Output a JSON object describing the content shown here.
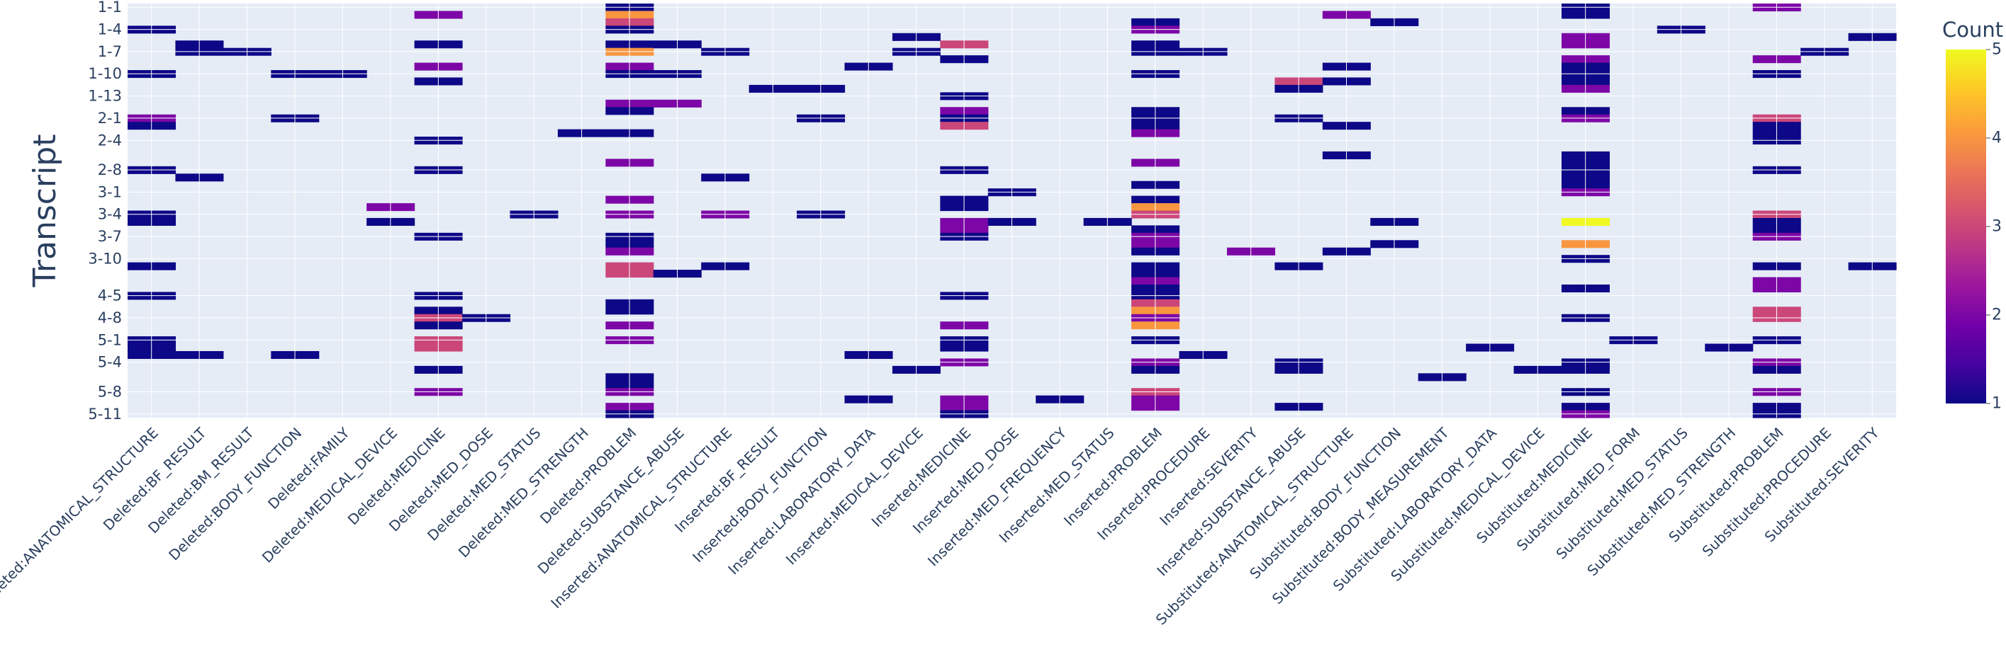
{
  "chart_data": {
    "type": "heatmap",
    "title": "",
    "xlabel": "",
    "ylabel": "Transcript",
    "colorbar_title": "Count",
    "zmin": 1,
    "zmax": 5,
    "colorbar_ticks": [
      1,
      2,
      3,
      4,
      5
    ],
    "y_tick_labels": [
      "1-1",
      "1-4",
      "1-7",
      "1-10",
      "1-13",
      "2-1",
      "2-4",
      "2-8",
      "3-1",
      "3-4",
      "3-7",
      "3-10",
      "4-5",
      "4-8",
      "5-1",
      "5-4",
      "5-8",
      "5-11"
    ],
    "y_categories": [
      "1-1",
      "1-2",
      "1-3",
      "1-4",
      "1-5",
      "1-6",
      "1-7",
      "1-8",
      "1-9",
      "1-10",
      "1-11",
      "1-12",
      "1-13",
      "1-14",
      "1-15",
      "2-1",
      "2-2",
      "2-3",
      "2-4",
      "2-5",
      "2-6",
      "2-7",
      "2-8",
      "2-9",
      "2-10",
      "3-1",
      "3-2",
      "3-3",
      "3-4",
      "3-5",
      "3-6",
      "3-7",
      "3-8",
      "3-9",
      "3-10",
      "4-1",
      "4-2",
      "4-3",
      "4-4",
      "4-5",
      "4-6",
      "4-7",
      "4-8",
      "4-9",
      "4-10",
      "5-1",
      "5-2",
      "5-3",
      "5-4",
      "5-5",
      "5-6",
      "5-7",
      "5-8",
      "5-9",
      "5-10",
      "5-11"
    ],
    "x_categories": [
      "Deleted:ANATOMICAL_STRUCTURE",
      "Deleted:BF_RESULT",
      "Deleted:BM_RESULT",
      "Deleted:BODY_FUNCTION",
      "Deleted:FAMILY",
      "Deleted:MEDICAL_DEVICE",
      "Deleted:MEDICINE",
      "Deleted:MED_DOSE",
      "Deleted:MED_STATUS",
      "Deleted:MED_STRENGTH",
      "Deleted:PROBLEM",
      "Deleted:SUBSTANCE_ABUSE",
      "Inserted:ANATOMICAL_STRUCTURE",
      "Inserted:BF_RESULT",
      "Inserted:BODY_FUNCTION",
      "Inserted:LABORATORY_DATA",
      "Inserted:MEDICAL_DEVICE",
      "Inserted:MEDICINE",
      "Inserted:MED_DOSE",
      "Inserted:MED_FREQUENCY",
      "Inserted:MED_STATUS",
      "Inserted:PROBLEM",
      "Inserted:PROCEDURE",
      "Inserted:SEVERITY",
      "Inserted:SUBSTANCE_ABUSE",
      "Substituted:ANATOMICAL_STRUCTURE",
      "Substituted:BODY_FUNCTION",
      "Substituted:BODY_MEASUREMENT",
      "Substituted:LABORATORY_DATA",
      "Substituted:MEDICAL_DEVICE",
      "Substituted:MEDICINE",
      "Substituted:MED_FORM",
      "Substituted:MED_STATUS",
      "Substituted:MED_STRENGTH",
      "Substituted:PROBLEM",
      "Substituted:PROCEDURE",
      "Substituted:SEVERITY"
    ],
    "cells": [
      [
        "1-4",
        "Deleted:ANATOMICAL_STRUCTURE",
        1
      ],
      [
        "1-10",
        "Deleted:ANATOMICAL_STRUCTURE",
        1
      ],
      [
        "2-1",
        "Deleted:ANATOMICAL_STRUCTURE",
        2
      ],
      [
        "2-2",
        "Deleted:ANATOMICAL_STRUCTURE",
        1
      ],
      [
        "2-8",
        "Deleted:ANATOMICAL_STRUCTURE",
        1
      ],
      [
        "3-4",
        "Deleted:ANATOMICAL_STRUCTURE",
        1
      ],
      [
        "3-5",
        "Deleted:ANATOMICAL_STRUCTURE",
        1
      ],
      [
        "4-1",
        "Deleted:ANATOMICAL_STRUCTURE",
        1
      ],
      [
        "4-5",
        "Deleted:ANATOMICAL_STRUCTURE",
        1
      ],
      [
        "5-1",
        "Deleted:ANATOMICAL_STRUCTURE",
        1
      ],
      [
        "5-2",
        "Deleted:ANATOMICAL_STRUCTURE",
        1
      ],
      [
        "5-3",
        "Deleted:ANATOMICAL_STRUCTURE",
        1
      ],
      [
        "1-6",
        "Deleted:BF_RESULT",
        1
      ],
      [
        "1-7",
        "Deleted:BF_RESULT",
        1
      ],
      [
        "2-9",
        "Deleted:BF_RESULT",
        1
      ],
      [
        "5-3",
        "Deleted:BF_RESULT",
        1
      ],
      [
        "1-7",
        "Deleted:BM_RESULT",
        1
      ],
      [
        "1-10",
        "Deleted:BODY_FUNCTION",
        1
      ],
      [
        "2-1",
        "Deleted:BODY_FUNCTION",
        1
      ],
      [
        "5-3",
        "Deleted:BODY_FUNCTION",
        1
      ],
      [
        "1-10",
        "Deleted:FAMILY",
        1
      ],
      [
        "3-3",
        "Deleted:MEDICAL_DEVICE",
        2
      ],
      [
        "3-5",
        "Deleted:MEDICAL_DEVICE",
        1
      ],
      [
        "1-2",
        "Deleted:MEDICINE",
        2
      ],
      [
        "1-6",
        "Deleted:MEDICINE",
        1
      ],
      [
        "1-9",
        "Deleted:MEDICINE",
        2
      ],
      [
        "1-11",
        "Deleted:MEDICINE",
        1
      ],
      [
        "2-4",
        "Deleted:MEDICINE",
        1
      ],
      [
        "2-8",
        "Deleted:MEDICINE",
        1
      ],
      [
        "3-7",
        "Deleted:MEDICINE",
        1
      ],
      [
        "4-5",
        "Deleted:MEDICINE",
        1
      ],
      [
        "4-7",
        "Deleted:MEDICINE",
        1
      ],
      [
        "4-8",
        "Deleted:MEDICINE",
        3
      ],
      [
        "4-9",
        "Deleted:MEDICINE",
        1
      ],
      [
        "5-1",
        "Deleted:MEDICINE",
        3
      ],
      [
        "5-2",
        "Deleted:MEDICINE",
        3
      ],
      [
        "5-5",
        "Deleted:MEDICINE",
        1
      ],
      [
        "5-8",
        "Deleted:MEDICINE",
        2
      ],
      [
        "4-8",
        "Deleted:MED_DOSE",
        1
      ],
      [
        "3-4",
        "Deleted:MED_STATUS",
        1
      ],
      [
        "2-3",
        "Deleted:MED_STRENGTH",
        1
      ],
      [
        "1-1",
        "Deleted:PROBLEM",
        1
      ],
      [
        "1-2",
        "Deleted:PROBLEM",
        4
      ],
      [
        "1-3",
        "Deleted:PROBLEM",
        3
      ],
      [
        "1-4",
        "Deleted:PROBLEM",
        1
      ],
      [
        "1-6",
        "Deleted:PROBLEM",
        1
      ],
      [
        "1-7",
        "Deleted:PROBLEM",
        4
      ],
      [
        "1-9",
        "Deleted:PROBLEM",
        2
      ],
      [
        "1-10",
        "Deleted:PROBLEM",
        1
      ],
      [
        "1-14",
        "Deleted:PROBLEM",
        2
      ],
      [
        "1-15",
        "Deleted:PROBLEM",
        1
      ],
      [
        "2-3",
        "Deleted:PROBLEM",
        1
      ],
      [
        "2-7",
        "Deleted:PROBLEM",
        2
      ],
      [
        "3-2",
        "Deleted:PROBLEM",
        2
      ],
      [
        "3-4",
        "Deleted:PROBLEM",
        2
      ],
      [
        "3-7",
        "Deleted:PROBLEM",
        1
      ],
      [
        "3-8",
        "Deleted:PROBLEM",
        1
      ],
      [
        "3-9",
        "Deleted:PROBLEM",
        2
      ],
      [
        "4-1",
        "Deleted:PROBLEM",
        3
      ],
      [
        "4-2",
        "Deleted:PROBLEM",
        3
      ],
      [
        "4-6",
        "Deleted:PROBLEM",
        1
      ],
      [
        "4-7",
        "Deleted:PROBLEM",
        1
      ],
      [
        "4-9",
        "Deleted:PROBLEM",
        2
      ],
      [
        "5-1",
        "Deleted:PROBLEM",
        2
      ],
      [
        "5-6",
        "Deleted:PROBLEM",
        1
      ],
      [
        "5-7",
        "Deleted:PROBLEM",
        1
      ],
      [
        "5-8",
        "Deleted:PROBLEM",
        2
      ],
      [
        "5-10",
        "Deleted:PROBLEM",
        2
      ],
      [
        "5-11",
        "Deleted:PROBLEM",
        1
      ],
      [
        "1-6",
        "Deleted:SUBSTANCE_ABUSE",
        1
      ],
      [
        "1-10",
        "Deleted:SUBSTANCE_ABUSE",
        1
      ],
      [
        "1-14",
        "Deleted:SUBSTANCE_ABUSE",
        2
      ],
      [
        "4-2",
        "Deleted:SUBSTANCE_ABUSE",
        1
      ],
      [
        "1-7",
        "Inserted:ANATOMICAL_STRUCTURE",
        1
      ],
      [
        "2-9",
        "Inserted:ANATOMICAL_STRUCTURE",
        1
      ],
      [
        "3-4",
        "Inserted:ANATOMICAL_STRUCTURE",
        2
      ],
      [
        "4-1",
        "Inserted:ANATOMICAL_STRUCTURE",
        1
      ],
      [
        "1-12",
        "Inserted:BF_RESULT",
        1
      ],
      [
        "1-12",
        "Inserted:BODY_FUNCTION",
        1
      ],
      [
        "2-1",
        "Inserted:BODY_FUNCTION",
        1
      ],
      [
        "3-4",
        "Inserted:BODY_FUNCTION",
        1
      ],
      [
        "1-9",
        "Inserted:LABORATORY_DATA",
        1
      ],
      [
        "5-3",
        "Inserted:LABORATORY_DATA",
        1
      ],
      [
        "5-9",
        "Inserted:LABORATORY_DATA",
        1
      ],
      [
        "1-5",
        "Inserted:MEDICAL_DEVICE",
        1
      ],
      [
        "1-7",
        "Inserted:MEDICAL_DEVICE",
        1
      ],
      [
        "5-5",
        "Inserted:MEDICAL_DEVICE",
        1
      ],
      [
        "1-6",
        "Inserted:MEDICINE",
        3
      ],
      [
        "1-8",
        "Inserted:MEDICINE",
        1
      ],
      [
        "1-13",
        "Inserted:MEDICINE",
        1
      ],
      [
        "1-15",
        "Inserted:MEDICINE",
        2
      ],
      [
        "2-1",
        "Inserted:MEDICINE",
        1
      ],
      [
        "2-2",
        "Inserted:MEDICINE",
        3
      ],
      [
        "2-8",
        "Inserted:MEDICINE",
        1
      ],
      [
        "3-2",
        "Inserted:MEDICINE",
        1
      ],
      [
        "3-3",
        "Inserted:MEDICINE",
        1
      ],
      [
        "3-5",
        "Inserted:MEDICINE",
        2
      ],
      [
        "3-6",
        "Inserted:MEDICINE",
        2
      ],
      [
        "3-7",
        "Inserted:MEDICINE",
        1
      ],
      [
        "4-5",
        "Inserted:MEDICINE",
        1
      ],
      [
        "4-9",
        "Inserted:MEDICINE",
        2
      ],
      [
        "5-1",
        "Inserted:MEDICINE",
        1
      ],
      [
        "5-2",
        "Inserted:MEDICINE",
        1
      ],
      [
        "5-4",
        "Inserted:MEDICINE",
        2
      ],
      [
        "5-9",
        "Inserted:MEDICINE",
        2
      ],
      [
        "5-10",
        "Inserted:MEDICINE",
        2
      ],
      [
        "5-11",
        "Inserted:MEDICINE",
        1
      ],
      [
        "3-1",
        "Inserted:MED_DOSE",
        1
      ],
      [
        "3-5",
        "Inserted:MED_DOSE",
        1
      ],
      [
        "5-9",
        "Inserted:MED_FREQUENCY",
        1
      ],
      [
        "3-5",
        "Inserted:MED_STATUS",
        1
      ],
      [
        "1-3",
        "Inserted:PROBLEM",
        1
      ],
      [
        "1-4",
        "Inserted:PROBLEM",
        2
      ],
      [
        "1-6",
        "Inserted:PROBLEM",
        1
      ],
      [
        "1-7",
        "Inserted:PROBLEM",
        1
      ],
      [
        "1-10",
        "Inserted:PROBLEM",
        1
      ],
      [
        "1-15",
        "Inserted:PROBLEM",
        1
      ],
      [
        "2-1",
        "Inserted:PROBLEM",
        1
      ],
      [
        "2-2",
        "Inserted:PROBLEM",
        1
      ],
      [
        "2-3",
        "Inserted:PROBLEM",
        2
      ],
      [
        "2-7",
        "Inserted:PROBLEM",
        2
      ],
      [
        "2-10",
        "Inserted:PROBLEM",
        1
      ],
      [
        "3-2",
        "Inserted:PROBLEM",
        1
      ],
      [
        "3-3",
        "Inserted:PROBLEM",
        4
      ],
      [
        "3-4",
        "Inserted:PROBLEM",
        3
      ],
      [
        "3-6",
        "Inserted:PROBLEM",
        1
      ],
      [
        "3-7",
        "Inserted:PROBLEM",
        2
      ],
      [
        "3-8",
        "Inserted:PROBLEM",
        2
      ],
      [
        "3-9",
        "Inserted:PROBLEM",
        1
      ],
      [
        "4-1",
        "Inserted:PROBLEM",
        1
      ],
      [
        "4-2",
        "Inserted:PROBLEM",
        1
      ],
      [
        "4-3",
        "Inserted:PROBLEM",
        2
      ],
      [
        "4-4",
        "Inserted:PROBLEM",
        1
      ],
      [
        "4-5",
        "Inserted:PROBLEM",
        1
      ],
      [
        "4-6",
        "Inserted:PROBLEM",
        3
      ],
      [
        "4-7",
        "Inserted:PROBLEM",
        4
      ],
      [
        "4-8",
        "Inserted:PROBLEM",
        2
      ],
      [
        "4-9",
        "Inserted:PROBLEM",
        4
      ],
      [
        "5-1",
        "Inserted:PROBLEM",
        1
      ],
      [
        "5-4",
        "Inserted:PROBLEM",
        2
      ],
      [
        "5-5",
        "Inserted:PROBLEM",
        1
      ],
      [
        "5-8",
        "Inserted:PROBLEM",
        3
      ],
      [
        "5-9",
        "Inserted:PROBLEM",
        2
      ],
      [
        "5-10",
        "Inserted:PROBLEM",
        2
      ],
      [
        "1-7",
        "Inserted:PROCEDURE",
        1
      ],
      [
        "5-3",
        "Inserted:PROCEDURE",
        1
      ],
      [
        "3-9",
        "Inserted:SEVERITY",
        2
      ],
      [
        "1-11",
        "Inserted:SUBSTANCE_ABUSE",
        3
      ],
      [
        "1-12",
        "Inserted:SUBSTANCE_ABUSE",
        1
      ],
      [
        "2-1",
        "Inserted:SUBSTANCE_ABUSE",
        1
      ],
      [
        "4-1",
        "Inserted:SUBSTANCE_ABUSE",
        1
      ],
      [
        "5-4",
        "Inserted:SUBSTANCE_ABUSE",
        1
      ],
      [
        "5-5",
        "Inserted:SUBSTANCE_ABUSE",
        1
      ],
      [
        "5-10",
        "Inserted:SUBSTANCE_ABUSE",
        1
      ],
      [
        "1-2",
        "Substituted:ANATOMICAL_STRUCTURE",
        2
      ],
      [
        "1-9",
        "Substituted:ANATOMICAL_STRUCTURE",
        1
      ],
      [
        "1-11",
        "Substituted:ANATOMICAL_STRUCTURE",
        1
      ],
      [
        "2-2",
        "Substituted:ANATOMICAL_STRUCTURE",
        1
      ],
      [
        "2-6",
        "Substituted:ANATOMICAL_STRUCTURE",
        1
      ],
      [
        "3-9",
        "Substituted:ANATOMICAL_STRUCTURE",
        1
      ],
      [
        "1-3",
        "Substituted:BODY_FUNCTION",
        1
      ],
      [
        "3-5",
        "Substituted:BODY_FUNCTION",
        1
      ],
      [
        "3-8",
        "Substituted:BODY_FUNCTION",
        1
      ],
      [
        "5-6",
        "Substituted:BODY_MEASUREMENT",
        1
      ],
      [
        "5-2",
        "Substituted:LABORATORY_DATA",
        1
      ],
      [
        "5-5",
        "Substituted:MEDICAL_DEVICE",
        1
      ],
      [
        "1-1",
        "Substituted:MEDICINE",
        1
      ],
      [
        "1-2",
        "Substituted:MEDICINE",
        1
      ],
      [
        "1-5",
        "Substituted:MEDICINE",
        2
      ],
      [
        "1-6",
        "Substituted:MEDICINE",
        2
      ],
      [
        "1-8",
        "Substituted:MEDICINE",
        2
      ],
      [
        "1-9",
        "Substituted:MEDICINE",
        1
      ],
      [
        "1-10",
        "Substituted:MEDICINE",
        1
      ],
      [
        "1-11",
        "Substituted:MEDICINE",
        1
      ],
      [
        "1-12",
        "Substituted:MEDICINE",
        2
      ],
      [
        "1-15",
        "Substituted:MEDICINE",
        1
      ],
      [
        "2-1",
        "Substituted:MEDICINE",
        2
      ],
      [
        "2-6",
        "Substituted:MEDICINE",
        1
      ],
      [
        "2-7",
        "Substituted:MEDICINE",
        1
      ],
      [
        "2-8",
        "Substituted:MEDICINE",
        1
      ],
      [
        "2-9",
        "Substituted:MEDICINE",
        1
      ],
      [
        "2-10",
        "Substituted:MEDICINE",
        1
      ],
      [
        "3-1",
        "Substituted:MEDICINE",
        2
      ],
      [
        "3-5",
        "Substituted:MEDICINE",
        5
      ],
      [
        "3-8",
        "Substituted:MEDICINE",
        4
      ],
      [
        "3-10",
        "Substituted:MEDICINE",
        1
      ],
      [
        "4-4",
        "Substituted:MEDICINE",
        1
      ],
      [
        "4-8",
        "Substituted:MEDICINE",
        1
      ],
      [
        "5-4",
        "Substituted:MEDICINE",
        1
      ],
      [
        "5-5",
        "Substituted:MEDICINE",
        1
      ],
      [
        "5-8",
        "Substituted:MEDICINE",
        1
      ],
      [
        "5-10",
        "Substituted:MEDICINE",
        1
      ],
      [
        "5-11",
        "Substituted:MEDICINE",
        2
      ],
      [
        "5-1",
        "Substituted:MED_FORM",
        1
      ],
      [
        "1-4",
        "Substituted:MED_STATUS",
        1
      ],
      [
        "5-2",
        "Substituted:MED_STRENGTH",
        1
      ],
      [
        "1-1",
        "Substituted:PROBLEM",
        2
      ],
      [
        "1-8",
        "Substituted:PROBLEM",
        2
      ],
      [
        "1-10",
        "Substituted:PROBLEM",
        1
      ],
      [
        "2-1",
        "Substituted:PROBLEM",
        3
      ],
      [
        "2-2",
        "Substituted:PROBLEM",
        1
      ],
      [
        "2-3",
        "Substituted:PROBLEM",
        1
      ],
      [
        "2-4",
        "Substituted:PROBLEM",
        1
      ],
      [
        "2-8",
        "Substituted:PROBLEM",
        1
      ],
      [
        "3-4",
        "Substituted:PROBLEM",
        3
      ],
      [
        "3-5",
        "Substituted:PROBLEM",
        1
      ],
      [
        "3-6",
        "Substituted:PROBLEM",
        1
      ],
      [
        "3-7",
        "Substituted:PROBLEM",
        2
      ],
      [
        "4-1",
        "Substituted:PROBLEM",
        1
      ],
      [
        "4-3",
        "Substituted:PROBLEM",
        2
      ],
      [
        "4-4",
        "Substituted:PROBLEM",
        2
      ],
      [
        "4-7",
        "Substituted:PROBLEM",
        3
      ],
      [
        "4-8",
        "Substituted:PROBLEM",
        3
      ],
      [
        "5-1",
        "Substituted:PROBLEM",
        1
      ],
      [
        "5-4",
        "Substituted:PROBLEM",
        2
      ],
      [
        "5-5",
        "Substituted:PROBLEM",
        1
      ],
      [
        "5-8",
        "Substituted:PROBLEM",
        2
      ],
      [
        "5-10",
        "Substituted:PROBLEM",
        1
      ],
      [
        "5-11",
        "Substituted:PROBLEM",
        1
      ],
      [
        "1-7",
        "Substituted:PROCEDURE",
        1
      ],
      [
        "1-5",
        "Substituted:SEVERITY",
        1
      ],
      [
        "4-1",
        "Substituted:SEVERITY",
        1
      ]
    ]
  },
  "colors": {
    "plot_background": "#e5ecf6",
    "grid": "#ffffff",
    "text": "#2a3f5f",
    "colorscale": [
      "#0d0887",
      "#46039f",
      "#7201a8",
      "#9c179e",
      "#bd3786",
      "#d8576b",
      "#ed7953",
      "#fb9f3a",
      "#fdca26",
      "#f0f921"
    ]
  }
}
